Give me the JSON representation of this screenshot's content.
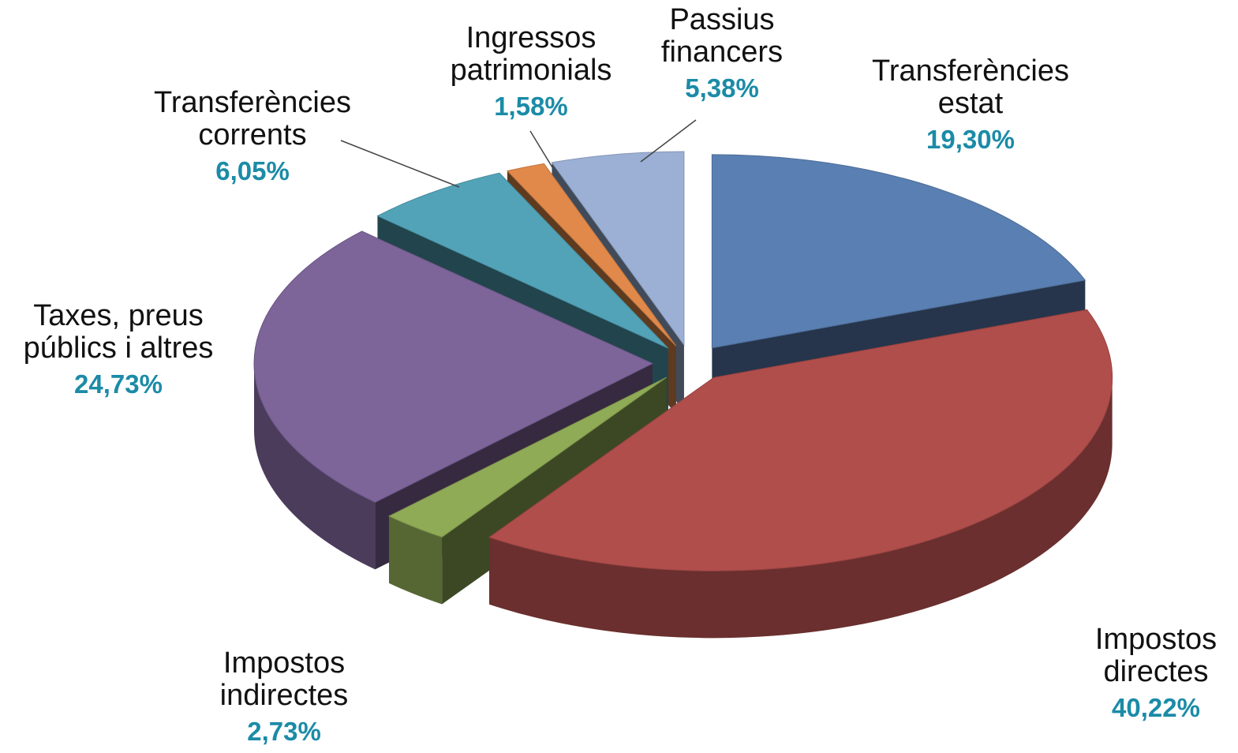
{
  "chart_data": {
    "type": "pie3d",
    "categories": [
      "Transferències\nestat",
      "Impostos\ndirectes",
      "Impostos\nindirectes",
      "Taxes, preus\npúblics i altres",
      "Transferències\ncorrents",
      "Ingressos\npatrimonials",
      "Passius\nfinancers"
    ],
    "values": [
      19.3,
      40.22,
      2.73,
      24.73,
      6.05,
      1.58,
      5.38
    ],
    "value_labels": [
      "19,30%",
      "40,22%",
      "2,73%",
      "24,73%",
      "6,05%",
      "1,58%",
      "5,38%"
    ],
    "colors": [
      "#5a7fb2",
      "#b04e4c",
      "#8fab56",
      "#7d6499",
      "#52a3b8",
      "#e0894a",
      "#9bb0d4"
    ]
  }
}
